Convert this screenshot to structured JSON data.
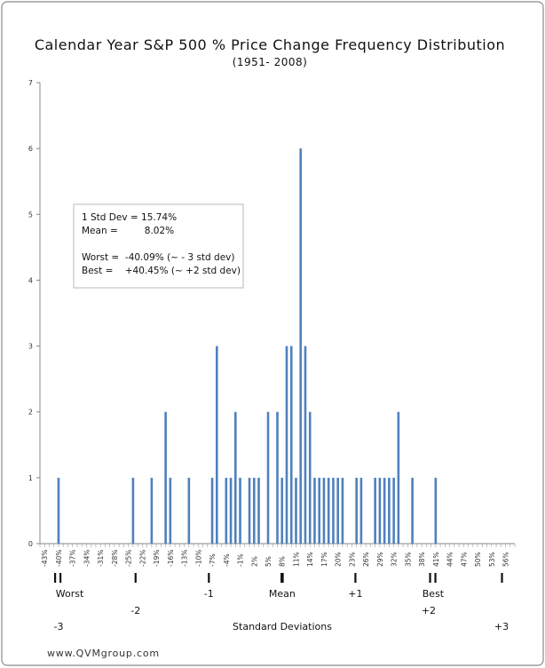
{
  "chart_data": {
    "type": "bar",
    "title": "Calendar Year S&P 500 % Price Change Frequency Distribution",
    "subtitle": "(1951- 2008)",
    "ylim": [
      0,
      7
    ],
    "y_ticks": [
      0,
      1,
      2,
      3,
      4,
      5,
      6,
      7
    ],
    "x_range": [
      -44,
      58
    ],
    "x_tick_values": [
      -43,
      -40,
      -37,
      -34,
      -31,
      -28,
      -25,
      -22,
      -19,
      -16,
      -13,
      -10,
      -7,
      -4,
      -1,
      2,
      5,
      8,
      11,
      14,
      17,
      20,
      23,
      26,
      29,
      32,
      35,
      38,
      41,
      44,
      47,
      50,
      53,
      56
    ],
    "x_tick_labels": [
      "-43%",
      "-40%",
      "-37%",
      "-34%",
      "-31%",
      "-28%",
      "-25%",
      "-22%",
      "-19%",
      "-16%",
      "-13%",
      "-10%",
      "-7%",
      "-4%",
      "-1%",
      "2%",
      "5%",
      "8%",
      "11%",
      "14%",
      "17%",
      "20%",
      "23%",
      "26%",
      "29%",
      "32%",
      "35%",
      "38%",
      "41%",
      "44%",
      "47%",
      "50%",
      "53%",
      "56%"
    ],
    "bars": [
      {
        "x": -40,
        "value": 1
      },
      {
        "x": -24,
        "value": 1
      },
      {
        "x": -20,
        "value": 1
      },
      {
        "x": -17,
        "value": 2
      },
      {
        "x": -16,
        "value": 1
      },
      {
        "x": -12,
        "value": 1
      },
      {
        "x": -7,
        "value": 1
      },
      {
        "x": -6,
        "value": 3
      },
      {
        "x": -4,
        "value": 1
      },
      {
        "x": -3,
        "value": 1
      },
      {
        "x": -2,
        "value": 2
      },
      {
        "x": -1,
        "value": 1
      },
      {
        "x": 1,
        "value": 1
      },
      {
        "x": 2,
        "value": 1
      },
      {
        "x": 3,
        "value": 1
      },
      {
        "x": 5,
        "value": 2
      },
      {
        "x": 7,
        "value": 2
      },
      {
        "x": 8,
        "value": 1
      },
      {
        "x": 9,
        "value": 3
      },
      {
        "x": 10,
        "value": 3
      },
      {
        "x": 11,
        "value": 1
      },
      {
        "x": 12,
        "value": 6
      },
      {
        "x": 13,
        "value": 3
      },
      {
        "x": 14,
        "value": 2
      },
      {
        "x": 15,
        "value": 1
      },
      {
        "x": 16,
        "value": 1
      },
      {
        "x": 17,
        "value": 1
      },
      {
        "x": 18,
        "value": 1
      },
      {
        "x": 19,
        "value": 1
      },
      {
        "x": 20,
        "value": 1
      },
      {
        "x": 21,
        "value": 1
      },
      {
        "x": 24,
        "value": 1
      },
      {
        "x": 25,
        "value": 1
      },
      {
        "x": 28,
        "value": 1
      },
      {
        "x": 29,
        "value": 1
      },
      {
        "x": 30,
        "value": 1
      },
      {
        "x": 31,
        "value": 1
      },
      {
        "x": 32,
        "value": 1
      },
      {
        "x": 33,
        "value": 2
      },
      {
        "x": 36,
        "value": 1
      },
      {
        "x": 41,
        "value": 1
      }
    ],
    "bar_color": "#4f81bd",
    "annotation_lines": [
      "1 Std Dev = 15.74%",
      "Mean =         8.02%",
      "",
      "Worst =  -40.09% (~ - 3 std dev)",
      "Best =    +40.45% (~ +2 std dev)"
    ],
    "std_dev_markers": [
      {
        "x": -40.09,
        "label": "Worst",
        "row": 1,
        "double": true
      },
      {
        "x": -23.46,
        "label": "-2",
        "row": 2,
        "double": false
      },
      {
        "x": -7.72,
        "label": "-1",
        "row": 1,
        "double": false
      },
      {
        "x": 8.02,
        "label": "Mean",
        "row": 1,
        "double": false,
        "bold": true
      },
      {
        "x": 23.76,
        "label": "+1",
        "row": 1,
        "double": false
      },
      {
        "x": 40.45,
        "label": "Best",
        "row": 1,
        "double": true
      },
      {
        "x": 39.5,
        "label": "+2",
        "row": 2,
        "double": false,
        "no_tick": true
      },
      {
        "x": 55.24,
        "label": "",
        "row": 1,
        "double": false
      }
    ],
    "bottom_labels": {
      "left": "-3",
      "center": "Standard Deviations",
      "right": "+3"
    },
    "grid": false
  },
  "footer": {
    "website": "www.QVMgroup.com"
  }
}
